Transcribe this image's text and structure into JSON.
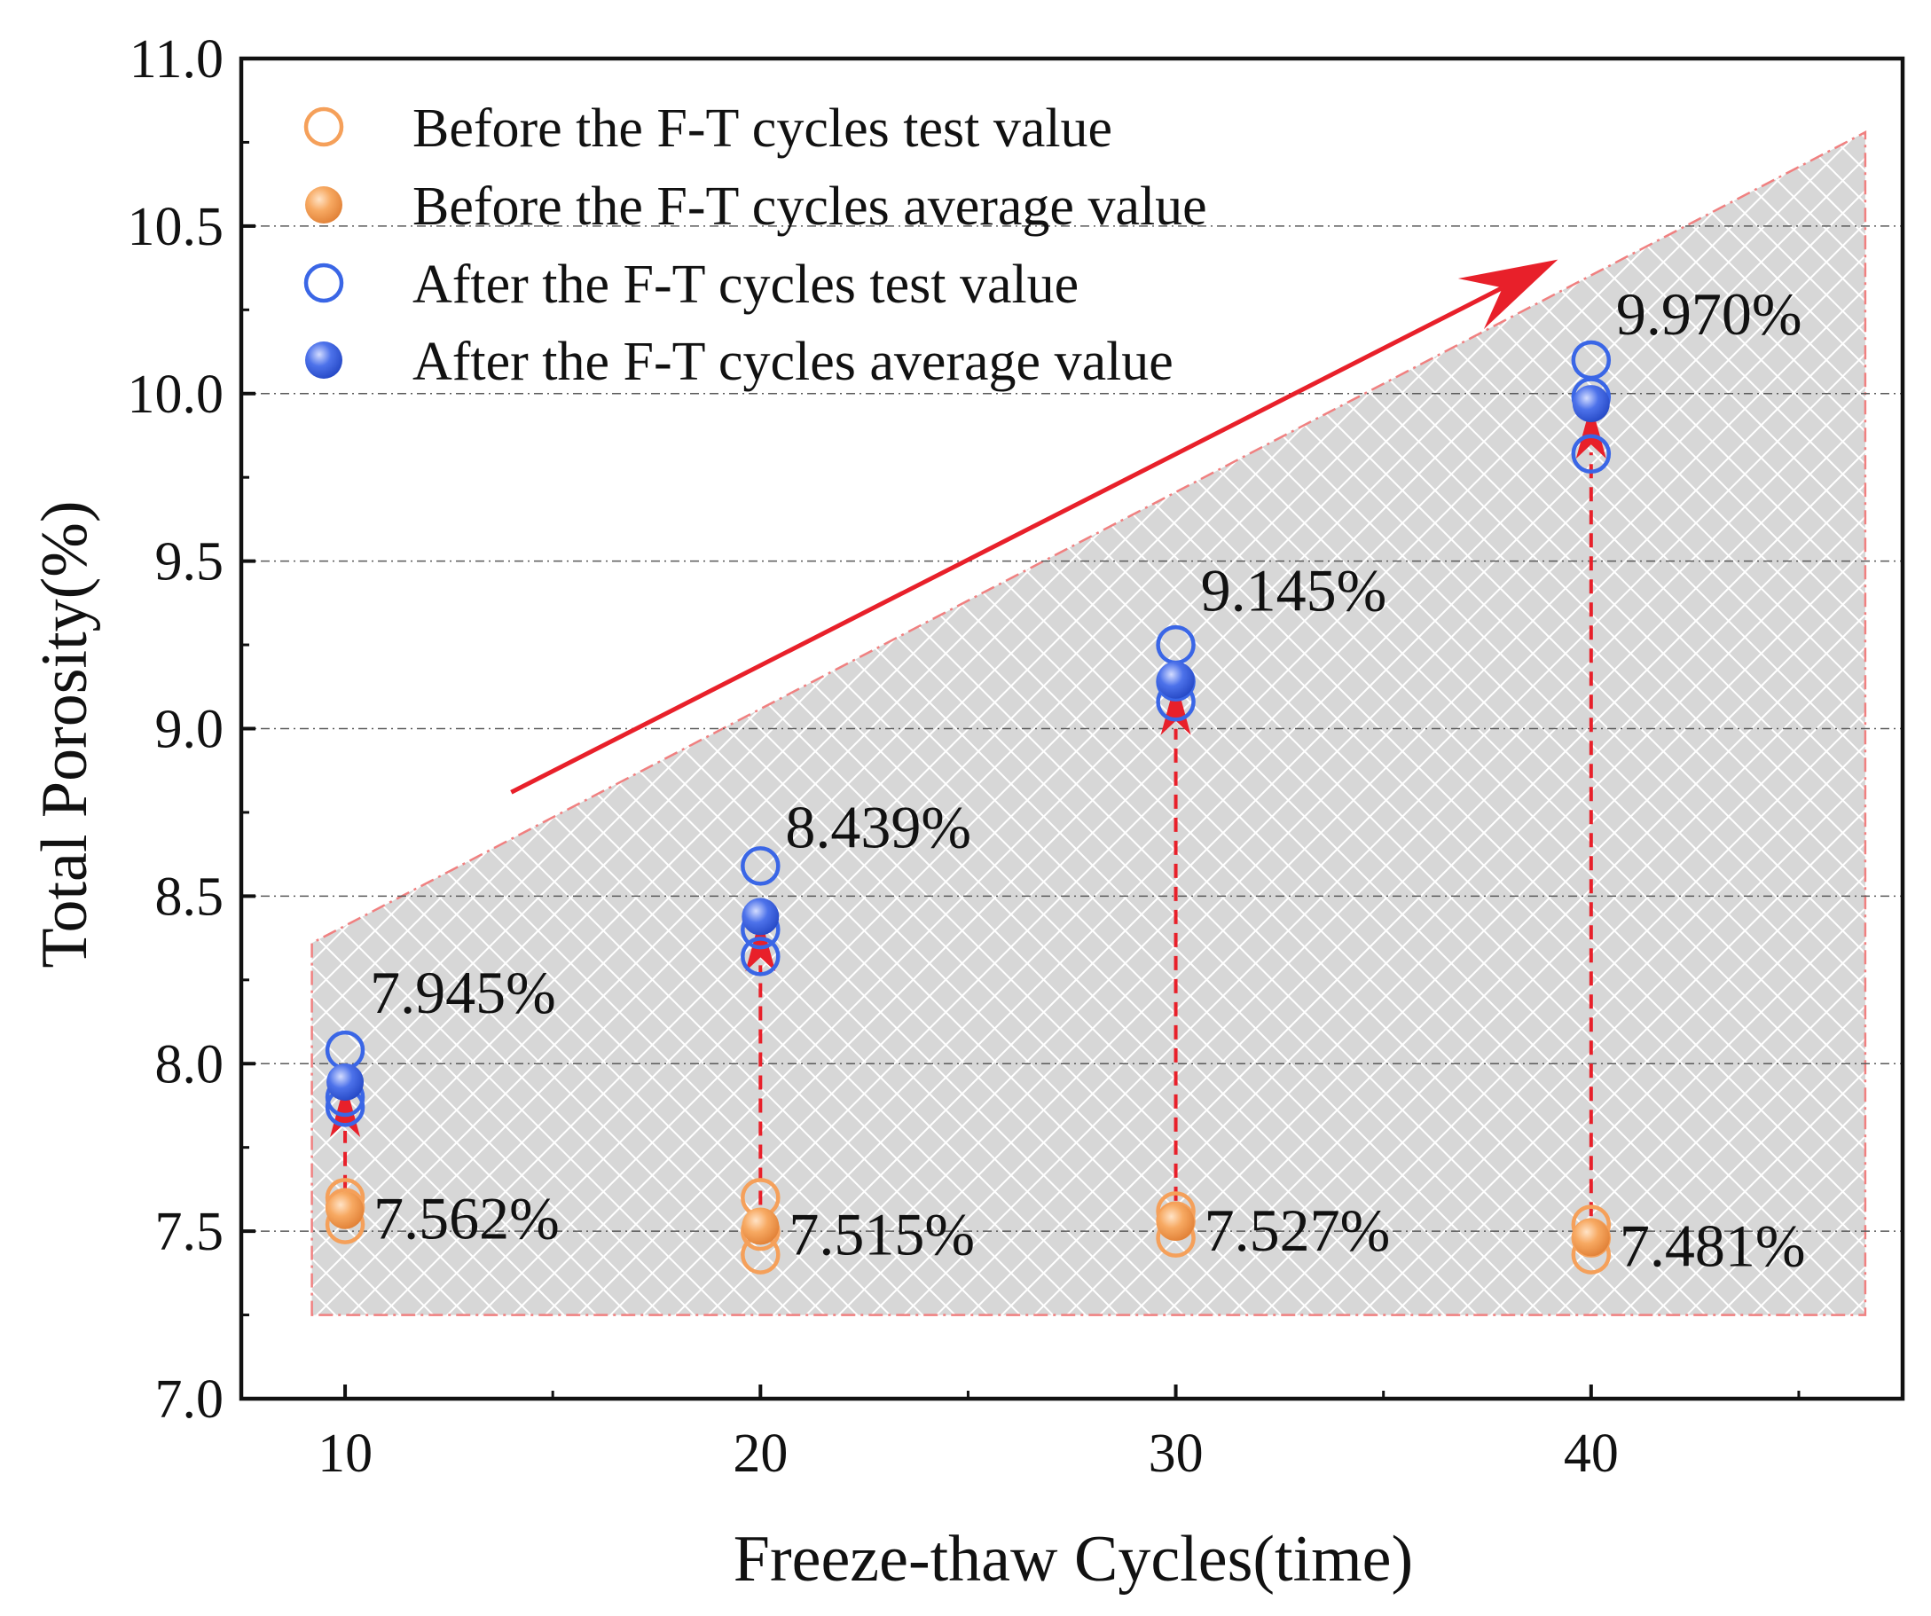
{
  "chart_data": {
    "type": "scatter",
    "title": "",
    "xlabel": "Freeze-thaw Cycles(time)",
    "ylabel": "Total Porosity(%)",
    "xlim": [
      7.5,
      47.5
    ],
    "ylim": [
      7.0,
      11.0
    ],
    "x_ticks": [
      10,
      20,
      30,
      40
    ],
    "x_tick_labels": [
      "10",
      "20",
      "30",
      "40"
    ],
    "x_minor_ticks": [
      15,
      25,
      35,
      45
    ],
    "y_ticks": [
      7.0,
      7.5,
      8.0,
      8.5,
      9.0,
      9.5,
      10.0,
      10.5,
      11.0
    ],
    "y_tick_labels": [
      "7.0",
      "7.5",
      "8.0",
      "8.5",
      "9.0",
      "9.5",
      "10.0",
      "10.5",
      "11.0"
    ],
    "y_minor_ticks": [
      7.25,
      7.75,
      8.25,
      8.75,
      9.25,
      9.75,
      10.25,
      10.75
    ],
    "gridlines_y": [
      7.5,
      8.0,
      8.5,
      9.0,
      9.5,
      10.0,
      10.5
    ],
    "grid": "horizontal dash-dot",
    "legend_position": "top-left",
    "series": [
      {
        "name": "Before the F-T cycles test value",
        "marker": "open-circle",
        "color": "#F5A05A",
        "points": [
          {
            "x": 10,
            "y": 7.6
          },
          {
            "x": 10,
            "y": 7.52
          },
          {
            "x": 10,
            "y": 7.57
          },
          {
            "x": 20,
            "y": 7.6
          },
          {
            "x": 20,
            "y": 7.5
          },
          {
            "x": 20,
            "y": 7.43
          },
          {
            "x": 30,
            "y": 7.56
          },
          {
            "x": 30,
            "y": 7.53
          },
          {
            "x": 30,
            "y": 7.48
          },
          {
            "x": 40,
            "y": 7.52
          },
          {
            "x": 40,
            "y": 7.48
          },
          {
            "x": 40,
            "y": 7.43
          }
        ]
      },
      {
        "name": "Before the F-T cycles average value",
        "marker": "filled-circle",
        "color": "#F5A05A",
        "points": [
          {
            "x": 10,
            "y": 7.562
          },
          {
            "x": 20,
            "y": 7.515
          },
          {
            "x": 30,
            "y": 7.527
          },
          {
            "x": 40,
            "y": 7.481
          }
        ]
      },
      {
        "name": "After the F-T cycles test value",
        "marker": "open-circle",
        "color": "#3A66E6",
        "points": [
          {
            "x": 10,
            "y": 8.04
          },
          {
            "x": 10,
            "y": 7.9
          },
          {
            "x": 10,
            "y": 7.87
          },
          {
            "x": 20,
            "y": 8.59
          },
          {
            "x": 20,
            "y": 8.4
          },
          {
            "x": 20,
            "y": 8.32
          },
          {
            "x": 30,
            "y": 9.25
          },
          {
            "x": 30,
            "y": 9.14
          },
          {
            "x": 30,
            "y": 9.08
          },
          {
            "x": 40,
            "y": 10.1
          },
          {
            "x": 40,
            "y": 9.99
          },
          {
            "x": 40,
            "y": 9.82
          }
        ]
      },
      {
        "name": "After the F-T cycles average value",
        "marker": "filled-circle",
        "color": "#3A66E6",
        "points": [
          {
            "x": 10,
            "y": 7.945
          },
          {
            "x": 20,
            "y": 8.439
          },
          {
            "x": 30,
            "y": 9.145
          },
          {
            "x": 40,
            "y": 9.97
          }
        ]
      }
    ],
    "annotations": [
      {
        "text": "7.945%",
        "x": 10,
        "y": 7.945,
        "position": "upper-right"
      },
      {
        "text": "8.439%",
        "x": 20,
        "y": 8.439,
        "position": "upper-right"
      },
      {
        "text": "9.145%",
        "x": 30,
        "y": 9.145,
        "position": "upper-right"
      },
      {
        "text": "9.970%",
        "x": 40,
        "y": 9.97,
        "position": "upper-right"
      },
      {
        "text": "7.562%",
        "x": 10,
        "y": 7.562,
        "position": "right"
      },
      {
        "text": "7.515%",
        "x": 20,
        "y": 7.515,
        "position": "right"
      },
      {
        "text": "7.527%",
        "x": 30,
        "y": 7.527,
        "position": "right"
      },
      {
        "text": "7.481%",
        "x": 40,
        "y": 7.481,
        "position": "right"
      }
    ],
    "increase_arrows": [
      {
        "x": 10,
        "from": 7.562,
        "to": 7.945
      },
      {
        "x": 20,
        "from": 7.515,
        "to": 8.439
      },
      {
        "x": 30,
        "from": 7.527,
        "to": 9.145
      },
      {
        "x": 40,
        "from": 7.481,
        "to": 9.97
      }
    ],
    "trend_arrow": {
      "from": {
        "x": 14,
        "y": 8.81
      },
      "to": {
        "x": 39.2,
        "y": 10.4
      },
      "color": "#E8202A"
    },
    "shaded_region": {
      "vertices": [
        {
          "x": 9.2,
          "y": 7.25
        },
        {
          "x": 9.2,
          "y": 8.36
        },
        {
          "x": 46.6,
          "y": 10.78
        },
        {
          "x": 46.6,
          "y": 7.25
        }
      ],
      "fill": "crosshatch-gray",
      "border_color": "#F08080"
    }
  }
}
